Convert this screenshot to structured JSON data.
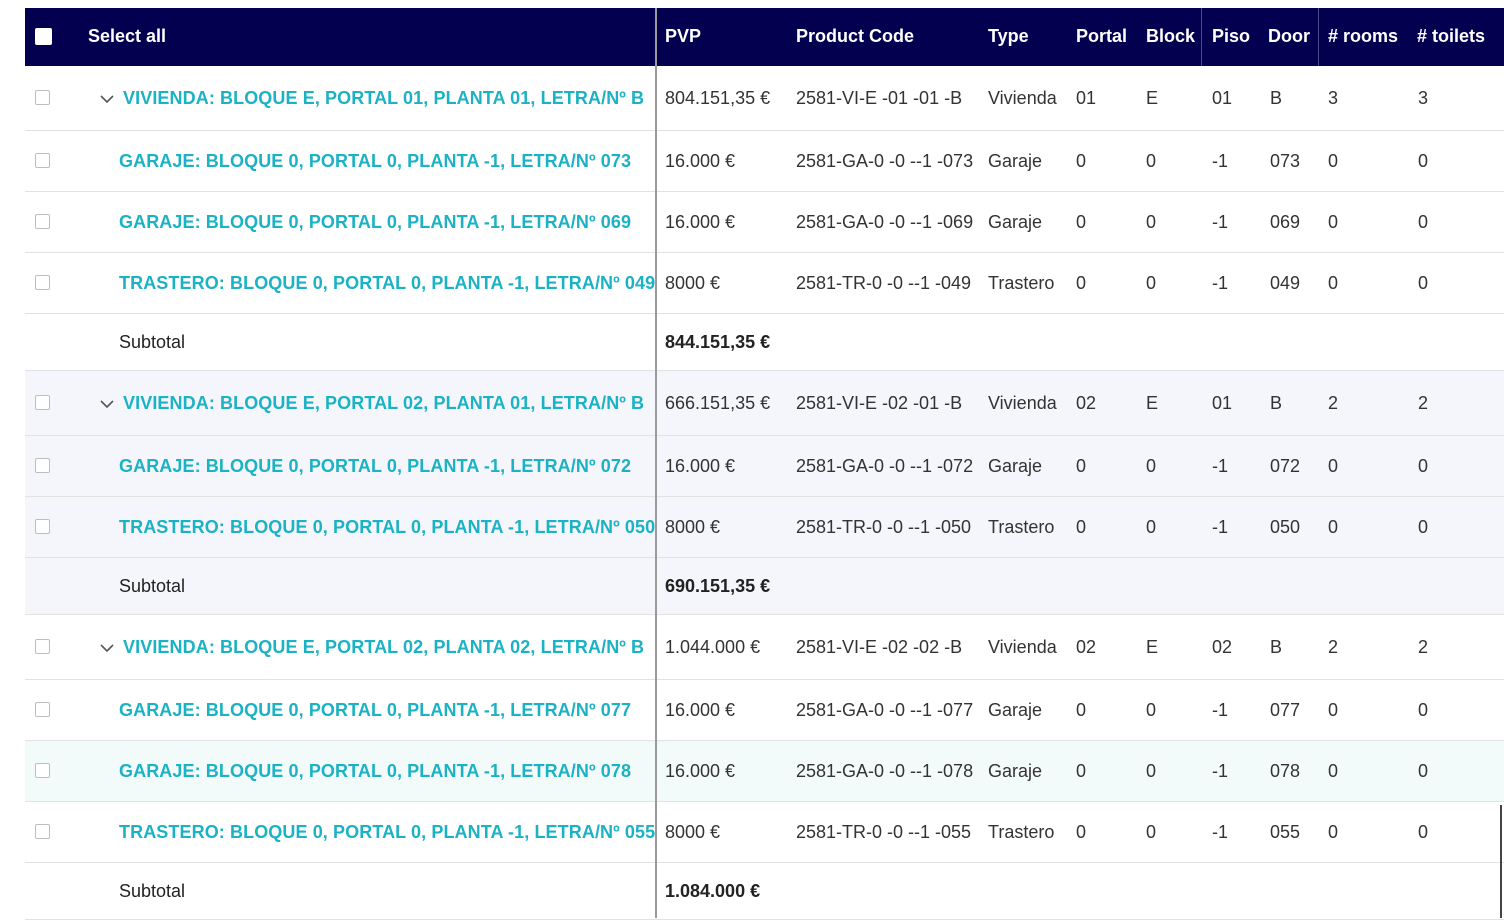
{
  "header": {
    "select_all": "Select all",
    "pvp": "PVP",
    "product_code": "Product Code",
    "type": "Type",
    "portal": "Portal",
    "block": "Block",
    "piso": "Piso",
    "door": "Door",
    "rooms": "# rooms",
    "toilets": "# toilets"
  },
  "groups": [
    {
      "style": "plain",
      "rows": [
        {
          "kind": "parent",
          "name": "VIVIENDA: BLOQUE E, PORTAL 01, PLANTA 01, LETRA/Nº B",
          "pvp": "804.151,35 €",
          "code": "2581-VI-E -01 -01 -B",
          "type": "Vivienda",
          "portal": "01",
          "block": "E",
          "piso": "01",
          "door": "B",
          "rooms": "3",
          "toilets": "3"
        },
        {
          "kind": "child",
          "name": "GARAJE: BLOQUE 0, PORTAL 0, PLANTA -1, LETRA/Nº 073",
          "pvp": "16.000 €",
          "code": "2581-GA-0 -0 --1 -073",
          "type": "Garaje",
          "portal": "0",
          "block": "0",
          "piso": "-1",
          "door": "073",
          "rooms": "0",
          "toilets": "0"
        },
        {
          "kind": "child",
          "name": "GARAJE: BLOQUE 0, PORTAL 0, PLANTA -1, LETRA/Nº 069",
          "pvp": "16.000 €",
          "code": "2581-GA-0 -0 --1 -069",
          "type": "Garaje",
          "portal": "0",
          "block": "0",
          "piso": "-1",
          "door": "069",
          "rooms": "0",
          "toilets": "0"
        },
        {
          "kind": "child",
          "name": "TRASTERO: BLOQUE 0, PORTAL 0, PLANTA -1, LETRA/Nº 049",
          "pvp": "8000 €",
          "code": "2581-TR-0 -0 --1 -049",
          "type": "Trastero",
          "portal": "0",
          "block": "0",
          "piso": "-1",
          "door": "049",
          "rooms": "0",
          "toilets": "0"
        }
      ],
      "subtotal_label": "Subtotal",
      "subtotal": "844.151,35 €"
    },
    {
      "style": "alt",
      "rows": [
        {
          "kind": "parent",
          "name": "VIVIENDA: BLOQUE E, PORTAL 02, PLANTA 01, LETRA/Nº B",
          "pvp": "666.151,35 €",
          "code": "2581-VI-E -02 -01 -B",
          "type": "Vivienda",
          "portal": "02",
          "block": "E",
          "piso": "01",
          "door": "B",
          "rooms": "2",
          "toilets": "2"
        },
        {
          "kind": "child",
          "name": "GARAJE: BLOQUE 0, PORTAL 0, PLANTA -1, LETRA/Nº 072",
          "pvp": "16.000 €",
          "code": "2581-GA-0 -0 --1 -072",
          "type": "Garaje",
          "portal": "0",
          "block": "0",
          "piso": "-1",
          "door": "072",
          "rooms": "0",
          "toilets": "0"
        },
        {
          "kind": "child",
          "name": "TRASTERO: BLOQUE 0, PORTAL 0, PLANTA -1, LETRA/Nº 050",
          "pvp": "8000 €",
          "code": "2581-TR-0 -0 --1 -050",
          "type": "Trastero",
          "portal": "0",
          "block": "0",
          "piso": "-1",
          "door": "050",
          "rooms": "0",
          "toilets": "0"
        }
      ],
      "subtotal_label": "Subtotal",
      "subtotal": "690.151,35 €"
    },
    {
      "style": "plain",
      "rows": [
        {
          "kind": "parent",
          "name": "VIVIENDA: BLOQUE E, PORTAL 02, PLANTA 02, LETRA/Nº B",
          "pvp": "1.044.000 €",
          "code": "2581-VI-E -02 -02 -B",
          "type": "Vivienda",
          "portal": "02",
          "block": "E",
          "piso": "02",
          "door": "B",
          "rooms": "2",
          "toilets": "2"
        },
        {
          "kind": "child",
          "name": "GARAJE: BLOQUE 0, PORTAL 0, PLANTA -1, LETRA/Nº 077",
          "pvp": "16.000 €",
          "code": "2581-GA-0 -0 --1 -077",
          "type": "Garaje",
          "portal": "0",
          "block": "0",
          "piso": "-1",
          "door": "077",
          "rooms": "0",
          "toilets": "0"
        },
        {
          "kind": "child",
          "name": "GARAJE: BLOQUE 0, PORTAL 0, PLANTA -1, LETRA/Nº 078",
          "pvp": "16.000 €",
          "code": "2581-GA-0 -0 --1 -078",
          "type": "Garaje",
          "portal": "0",
          "block": "0",
          "piso": "-1",
          "door": "078",
          "rooms": "0",
          "toilets": "0",
          "hover": true
        },
        {
          "kind": "child",
          "name": "TRASTERO: BLOQUE 0, PORTAL 0, PLANTA -1, LETRA/Nº 055",
          "pvp": "8000 €",
          "code": "2581-TR-0 -0 --1 -055",
          "type": "Trastero",
          "portal": "0",
          "block": "0",
          "piso": "-1",
          "door": "055",
          "rooms": "0",
          "toilets": "0"
        }
      ],
      "subtotal_label": "Subtotal",
      "subtotal": "1.084.000 €"
    }
  ]
}
